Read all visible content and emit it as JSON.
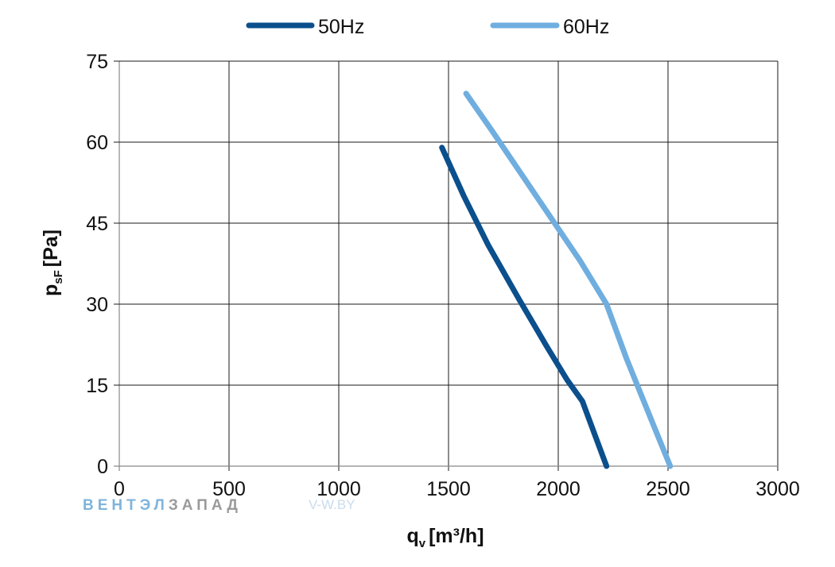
{
  "chart_data": {
    "type": "line",
    "title": "",
    "xlabel": {
      "main": "q",
      "sub": "v",
      "unit": "[m³/h]"
    },
    "ylabel": {
      "main": "p",
      "sub": "sF",
      "unit": "[Pa]"
    },
    "xlim": [
      0,
      3000
    ],
    "ylim": [
      0,
      75
    ],
    "xticks": [
      0,
      500,
      1000,
      1500,
      2000,
      2500,
      3000
    ],
    "yticks": [
      0,
      15,
      30,
      45,
      60,
      75
    ],
    "grid": true,
    "legend": "top",
    "series": [
      {
        "name": "50Hz",
        "color": "#0b4f8c",
        "points": [
          [
            1470,
            59
          ],
          [
            1570,
            50
          ],
          [
            1680,
            41
          ],
          [
            1820,
            31
          ],
          [
            1950,
            22
          ],
          [
            2040,
            16
          ],
          [
            2110,
            12
          ],
          [
            2165,
            6
          ],
          [
            2220,
            0
          ]
        ]
      },
      {
        "name": "60Hz",
        "color": "#6faedf",
        "points": [
          [
            1580,
            69
          ],
          [
            1700,
            62
          ],
          [
            1850,
            53
          ],
          [
            2000,
            44
          ],
          [
            2100,
            38
          ],
          [
            2220,
            30
          ],
          [
            2310,
            20
          ],
          [
            2370,
            14
          ],
          [
            2440,
            7
          ],
          [
            2510,
            0
          ]
        ]
      }
    ]
  },
  "watermark": {
    "brand_a": "ВЕНТЭЛ",
    "brand_b": "ЗАПАД",
    "site": "V-W.BY"
  }
}
